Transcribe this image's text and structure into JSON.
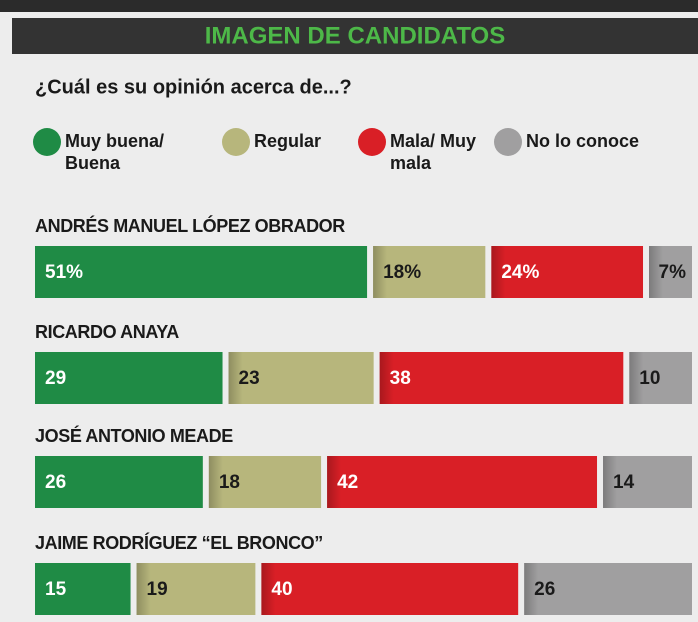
{
  "chart_data": {
    "type": "stacked_bar_horizontal",
    "title": "IMAGEN DE CANDIDATOS",
    "subtitle": "¿Cuál es su opinión acerca de...?",
    "categories": [
      "ANDRÉS MANUEL LÓPEZ OBRADOR",
      "RICARDO ANAYA",
      "JOSÉ ANTONIO MEADE",
      "JAIME RODRÍGUEZ “EL BRONCO”"
    ],
    "series": [
      {
        "name": "Muy buena/ Buena",
        "color": "#1f8b45",
        "label_color": "#ffffff",
        "values": [
          51,
          29,
          26,
          15
        ],
        "value_labels": [
          "51%",
          "29",
          "26",
          "15"
        ]
      },
      {
        "name": "Regular",
        "color": "#b7b67c",
        "label_color": "#1a1a1a",
        "values": [
          18,
          23,
          18,
          19
        ],
        "value_labels": [
          "18%",
          "23",
          "18",
          "19"
        ]
      },
      {
        "name": "Mala/ Muy mala",
        "color": "#d91f26",
        "label_color": "#ffffff",
        "values": [
          24,
          38,
          42,
          40
        ],
        "value_labels": [
          "24%",
          "38",
          "42",
          "40"
        ]
      },
      {
        "name": "No lo conoce",
        "color": "#a09fa0",
        "label_color": "#1a1a1a",
        "values": [
          7,
          10,
          14,
          26
        ],
        "value_labels": [
          "7%",
          "10",
          "14",
          "26"
        ]
      }
    ]
  }
}
